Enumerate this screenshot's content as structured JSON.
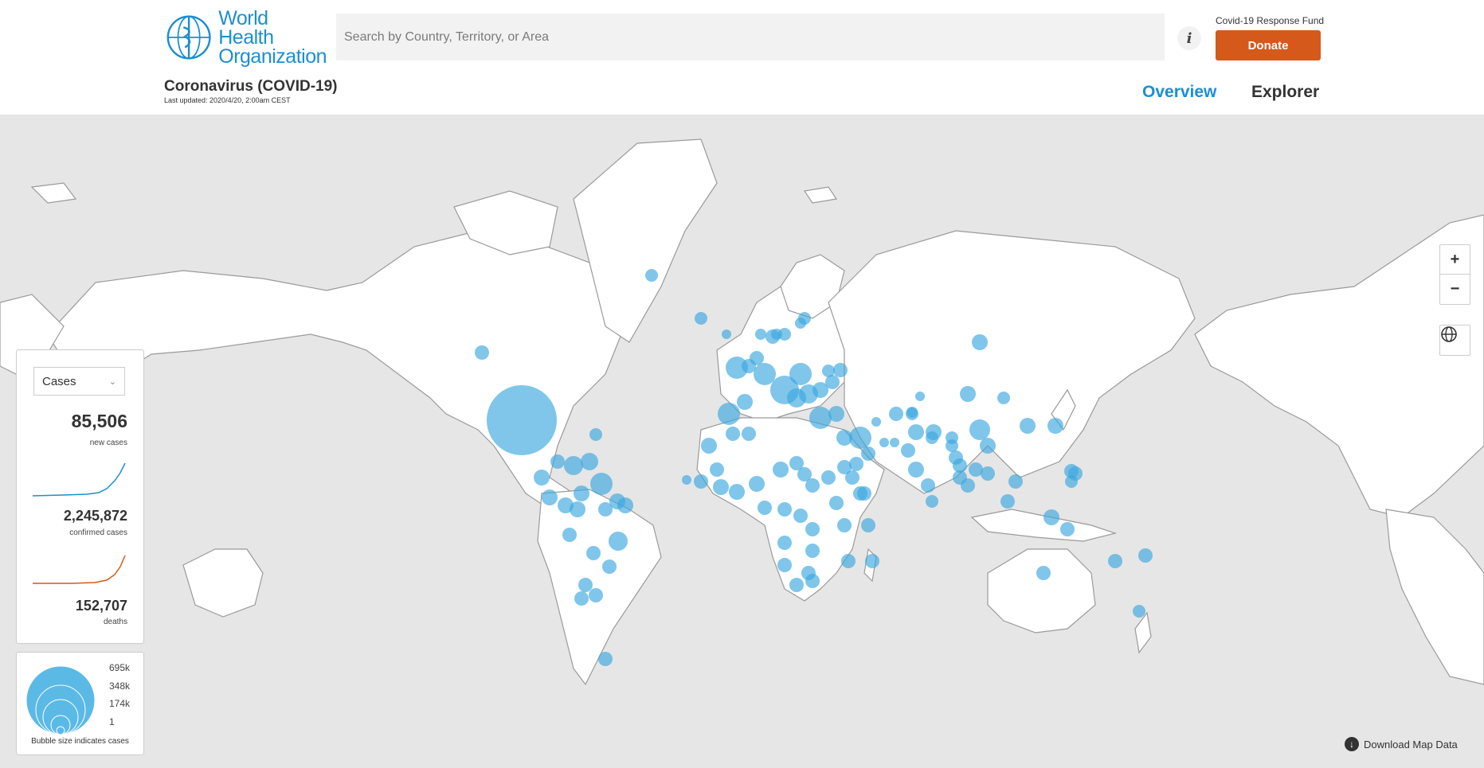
{
  "header": {
    "logo_line1": "World Health",
    "logo_line2": "Organization",
    "search_placeholder": "Search by Country, Territory, or Area",
    "info_label": "i",
    "fund_label": "Covid-19 Response Fund",
    "donate_label": "Donate",
    "title": "Coronavirus (COVID-19)",
    "last_updated": "Last updated: 2020/4/20, 2:00am CEST",
    "nav": {
      "overview": "Overview",
      "explorer": "Explorer"
    }
  },
  "map_controls": {
    "zoom_in": "+",
    "zoom_out": "−"
  },
  "stats": {
    "metric_selected": "Cases",
    "new_cases": "85,506",
    "new_cases_label": "new cases",
    "confirmed": "2,245,872",
    "confirmed_label": "confirmed cases",
    "deaths": "152,707",
    "deaths_label": "deaths"
  },
  "legend": {
    "values": [
      "695k",
      "348k",
      "174k",
      "1"
    ],
    "caption": "Bubble size indicates cases"
  },
  "download_label": "Download Map Data",
  "colors": {
    "brand_blue": "#1b8fd2",
    "donate_orange": "#d4591b",
    "bubble": "#3aa8de",
    "cases_line": "#1b8fd2",
    "confirmed_line": "#d4591b"
  }
}
